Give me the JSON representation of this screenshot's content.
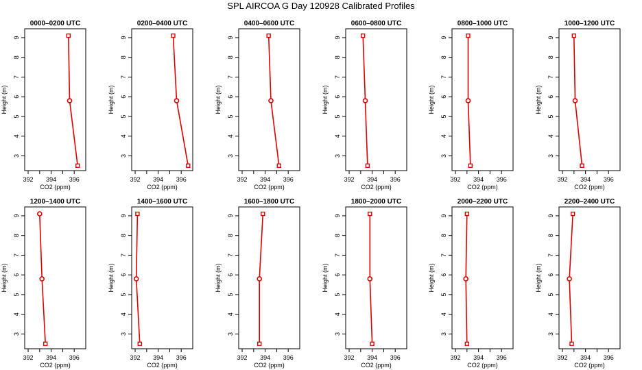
{
  "page": {
    "title": "SPL AIRCOA G  Day 120928  Calibrated Profiles"
  },
  "colors": {
    "line": "#dd0000",
    "axis": "#000000",
    "background": "#ffffff"
  },
  "chart_data": [
    {
      "type": "line",
      "title": "0000–0200 UTC",
      "xlabel": "CO2 (ppm)",
      "ylabel": "Height (m)",
      "xlim": [
        391.7,
        397.0
      ],
      "ylim": [
        2.25,
        9.45
      ],
      "xticks": [
        392,
        394,
        396
      ],
      "yticks": [
        3,
        4,
        5,
        6,
        7,
        8,
        9
      ],
      "grid": false,
      "series": [
        {
          "x": [
            395.5,
            395.6,
            396.3
          ],
          "y": [
            9.1,
            5.8,
            2.5
          ],
          "markers": [
            "square",
            "circle",
            "square"
          ]
        }
      ]
    },
    {
      "type": "line",
      "title": "0200–0400 UTC",
      "xlabel": "CO2 (ppm)",
      "ylabel": "Height (m)",
      "xlim": [
        391.7,
        397.0
      ],
      "ylim": [
        2.25,
        9.45
      ],
      "xticks": [
        392,
        394,
        396
      ],
      "yticks": [
        3,
        4,
        5,
        6,
        7,
        8,
        9
      ],
      "grid": false,
      "series": [
        {
          "x": [
            395.3,
            395.6,
            396.6
          ],
          "y": [
            9.1,
            5.8,
            2.5
          ],
          "markers": [
            "square",
            "circle",
            "square"
          ]
        }
      ]
    },
    {
      "type": "line",
      "title": "0400–0600 UTC",
      "xlabel": "CO2 (ppm)",
      "ylabel": "Height (m)",
      "xlim": [
        391.7,
        397.0
      ],
      "ylim": [
        2.25,
        9.45
      ],
      "xticks": [
        392,
        394,
        396
      ],
      "yticks": [
        3,
        4,
        5,
        6,
        7,
        8,
        9
      ],
      "grid": false,
      "series": [
        {
          "x": [
            394.3,
            394.5,
            395.2
          ],
          "y": [
            9.1,
            5.8,
            2.5
          ],
          "markers": [
            "square",
            "circle",
            "square"
          ]
        }
      ]
    },
    {
      "type": "line",
      "title": "0600–0800 UTC",
      "xlabel": "CO2 (ppm)",
      "ylabel": "Height (m)",
      "xlim": [
        391.7,
        397.0
      ],
      "ylim": [
        2.25,
        9.45
      ],
      "xticks": [
        392,
        394,
        396
      ],
      "yticks": [
        3,
        4,
        5,
        6,
        7,
        8,
        9
      ],
      "grid": false,
      "series": [
        {
          "x": [
            393.2,
            393.4,
            393.6
          ],
          "y": [
            9.1,
            5.8,
            2.5
          ],
          "markers": [
            "square",
            "circle",
            "square"
          ]
        }
      ]
    },
    {
      "type": "line",
      "title": "0800–1000 UTC",
      "xlabel": "CO2 (ppm)",
      "ylabel": "Height (m)",
      "xlim": [
        391.7,
        397.0
      ],
      "ylim": [
        2.25,
        9.45
      ],
      "xticks": [
        392,
        394,
        396
      ],
      "yticks": [
        3,
        4,
        5,
        6,
        7,
        8,
        9
      ],
      "grid": false,
      "series": [
        {
          "x": [
            393.1,
            393.1,
            393.3
          ],
          "y": [
            9.1,
            5.8,
            2.5
          ],
          "markers": [
            "square",
            "circle",
            "square"
          ]
        }
      ]
    },
    {
      "type": "line",
      "title": "1000–1200 UTC",
      "xlabel": "CO2 (ppm)",
      "ylabel": "Height (m)",
      "xlim": [
        391.7,
        397.0
      ],
      "ylim": [
        2.25,
        9.45
      ],
      "xticks": [
        392,
        394,
        396
      ],
      "yticks": [
        3,
        4,
        5,
        6,
        7,
        8,
        9
      ],
      "grid": false,
      "series": [
        {
          "x": [
            393.0,
            393.1,
            393.7
          ],
          "y": [
            9.1,
            5.8,
            2.5
          ],
          "markers": [
            "square",
            "circle",
            "square"
          ]
        }
      ]
    },
    {
      "type": "line",
      "title": "1200–1400 UTC",
      "xlabel": "CO2 (ppm)",
      "ylabel": "Height (m)",
      "xlim": [
        391.7,
        397.0
      ],
      "ylim": [
        2.25,
        9.45
      ],
      "xticks": [
        392,
        394,
        396
      ],
      "yticks": [
        3,
        4,
        5,
        6,
        7,
        8,
        9
      ],
      "grid": false,
      "series": [
        {
          "x": [
            393.0,
            393.2,
            393.5
          ],
          "y": [
            9.1,
            5.8,
            2.5
          ],
          "markers": [
            "circle",
            "circle",
            "square"
          ]
        }
      ]
    },
    {
      "type": "line",
      "title": "1400–1600 UTC",
      "xlabel": "CO2 (ppm)",
      "ylabel": "Height (m)",
      "xlim": [
        391.7,
        397.0
      ],
      "ylim": [
        2.25,
        9.45
      ],
      "xticks": [
        392,
        394,
        396
      ],
      "yticks": [
        3,
        4,
        5,
        6,
        7,
        8,
        9
      ],
      "grid": false,
      "series": [
        {
          "x": [
            392.2,
            392.1,
            392.4
          ],
          "y": [
            9.1,
            5.8,
            2.5
          ],
          "markers": [
            "square",
            "circle",
            "square"
          ]
        }
      ]
    },
    {
      "type": "line",
      "title": "1600–1800 UTC",
      "xlabel": "CO2 (ppm)",
      "ylabel": "Height (m)",
      "xlim": [
        391.7,
        397.0
      ],
      "ylim": [
        2.25,
        9.45
      ],
      "xticks": [
        392,
        394,
        396
      ],
      "yticks": [
        3,
        4,
        5,
        6,
        7,
        8,
        9
      ],
      "grid": false,
      "series": [
        {
          "x": [
            393.8,
            393.5,
            393.5
          ],
          "y": [
            9.1,
            5.8,
            2.5
          ],
          "markers": [
            "square",
            "circle",
            "square"
          ]
        }
      ]
    },
    {
      "type": "line",
      "title": "1800–2000 UTC",
      "xlabel": "CO2 (ppm)",
      "ylabel": "Height (m)",
      "xlim": [
        391.7,
        397.0
      ],
      "ylim": [
        2.25,
        9.45
      ],
      "xticks": [
        392,
        394,
        396
      ],
      "yticks": [
        3,
        4,
        5,
        6,
        7,
        8,
        9
      ],
      "grid": false,
      "series": [
        {
          "x": [
            393.8,
            393.8,
            394.0
          ],
          "y": [
            9.1,
            5.8,
            2.5
          ],
          "markers": [
            "square",
            "circle",
            "square"
          ]
        }
      ]
    },
    {
      "type": "line",
      "title": "2000–2200 UTC",
      "xlabel": "CO2 (ppm)",
      "ylabel": "Height (m)",
      "xlim": [
        391.7,
        397.0
      ],
      "ylim": [
        2.25,
        9.45
      ],
      "xticks": [
        392,
        394,
        396
      ],
      "yticks": [
        3,
        4,
        5,
        6,
        7,
        8,
        9
      ],
      "grid": false,
      "series": [
        {
          "x": [
            393.0,
            392.9,
            393.0
          ],
          "y": [
            9.1,
            5.8,
            2.5
          ],
          "markers": [
            "square",
            "circle",
            "square"
          ]
        }
      ]
    },
    {
      "type": "line",
      "title": "2200–2400 UTC",
      "xlabel": "CO2 (ppm)",
      "ylabel": "Height (m)",
      "xlim": [
        391.7,
        397.0
      ],
      "ylim": [
        2.25,
        9.45
      ],
      "xticks": [
        392,
        394,
        396
      ],
      "yticks": [
        3,
        4,
        5,
        6,
        7,
        8,
        9
      ],
      "grid": false,
      "series": [
        {
          "x": [
            392.9,
            392.6,
            392.8
          ],
          "y": [
            9.1,
            5.8,
            2.5
          ],
          "markers": [
            "square",
            "circle",
            "square"
          ]
        }
      ]
    }
  ]
}
